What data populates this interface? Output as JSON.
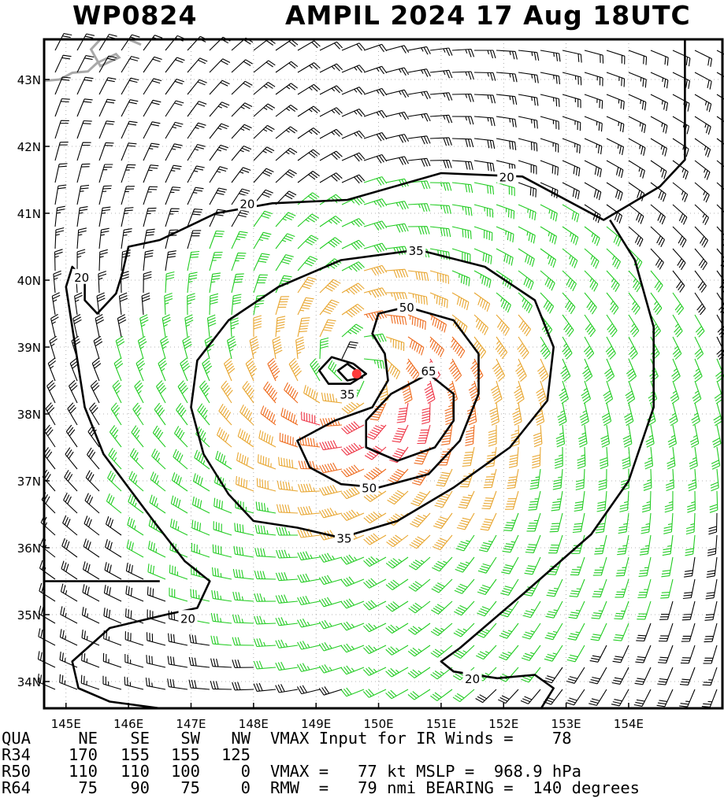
{
  "title": {
    "storm_id": "WP0824",
    "storm_time": "AMPIL 2024 17 Aug 18UTC"
  },
  "chart_data": {
    "type": "wind-barb-map",
    "x_axis": {
      "range": [
        144.65,
        155.5
      ],
      "ticks": [
        145,
        146,
        147,
        148,
        149,
        150,
        151,
        152,
        153,
        154
      ],
      "tick_labels": [
        "145E",
        "146E",
        "147E",
        "148E",
        "149E",
        "150E",
        "151E",
        "152E",
        "153E",
        "154E"
      ]
    },
    "y_axis": {
      "range": [
        33.6,
        43.6
      ],
      "ticks": [
        34,
        35,
        36,
        37,
        38,
        39,
        40,
        41,
        42,
        43
      ],
      "tick_labels": [
        "34N",
        "35N",
        "36N",
        "37N",
        "38N",
        "39N",
        "40N",
        "41N",
        "42N",
        "43N"
      ]
    },
    "grid": "dotted",
    "storm_center": {
      "lon": 149.65,
      "lat": 38.6
    },
    "contour_levels": [
      20,
      35,
      50,
      65
    ],
    "contour_labels": [
      {
        "text": "20",
        "lon": 152.05,
        "lat": 41.55
      },
      {
        "text": "20",
        "lon": 147.9,
        "lat": 41.15
      },
      {
        "text": "20",
        "lon": 145.25,
        "lat": 40.05
      },
      {
        "text": "20",
        "lon": 146.95,
        "lat": 34.95
      },
      {
        "text": "20",
        "lon": 151.5,
        "lat": 34.05
      },
      {
        "text": "35",
        "lon": 150.6,
        "lat": 40.45
      },
      {
        "text": "35",
        "lon": 149.5,
        "lat": 38.3
      },
      {
        "text": "35",
        "lon": 149.45,
        "lat": 36.15
      },
      {
        "text": "50",
        "lon": 150.45,
        "lat": 39.6
      },
      {
        "text": "50",
        "lon": 149.85,
        "lat": 36.9
      },
      {
        "text": "65",
        "lon": 150.8,
        "lat": 38.65
      }
    ],
    "wind_speed_colors": {
      "lt34": "#000000",
      "34to50": "#22cc22",
      "50to64": "#e8a630",
      "64to80": "#ee6a1c",
      "gt80": "#ee3344"
    },
    "contour_color": "#000000",
    "center_color": "#ff3b3b",
    "land_color": "#a8a8a8"
  },
  "stats": {
    "header": [
      "QUA",
      "NE",
      "SE",
      "SW",
      "NW"
    ],
    "rows": [
      [
        "R34",
        "170",
        "155",
        "155",
        "125"
      ],
      [
        "R50",
        "110",
        "110",
        "100",
        "0"
      ],
      [
        "R64",
        "75",
        "90",
        "75",
        "0"
      ]
    ],
    "note_vmax_input": "VMAX Input for IR Winds =    78",
    "note_vmax": "VMAX =   77 kt MSLP =  968.9 hPa",
    "note_rmw": "RMW  =   79 nmi BEARING =  140 degrees"
  }
}
